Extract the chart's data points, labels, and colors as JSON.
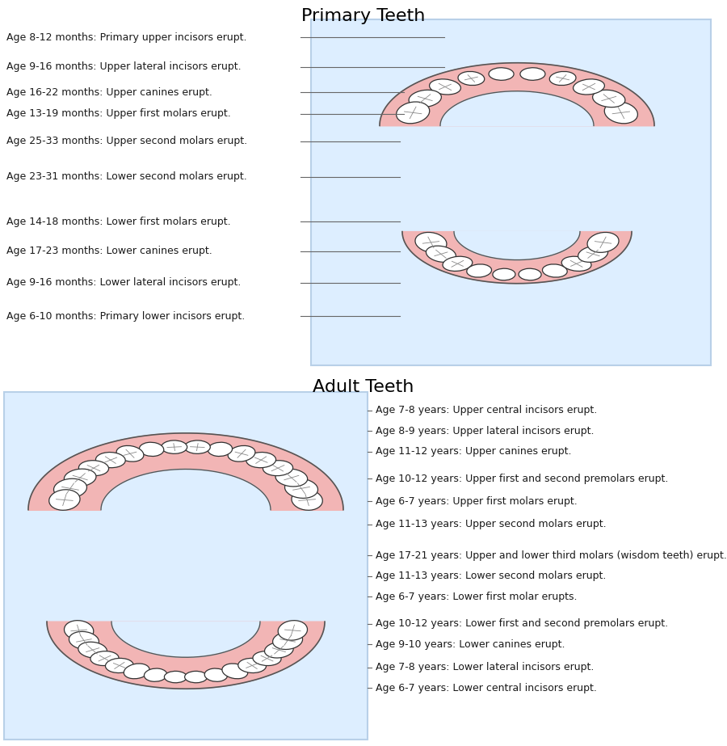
{
  "title1": "Primary Teeth",
  "title2": "Adult Teeth",
  "bg_color": "#ddeeff",
  "border_color": "#b8d0e8",
  "gum_color": "#f2b5b5",
  "tooth_color": "#ffffff",
  "tooth_edge": "#333333",
  "fissure_color": "#888888",
  "line_color": "#666666",
  "text_color": "#1a1a1a",
  "title_fontsize": 16,
  "label_fontsize": 9,
  "primary_labels": [
    "Age 8-12 months: Primary upper incisors erupt.",
    "Age 9-16 months: Upper lateral incisors erupt.",
    "Age 16-22 months: Upper canines erupt.",
    "Age 13-19 months: Upper first molars erupt.",
    "Age 25-33 months: Upper second molars erupt.",
    "Age 23-31 months: Lower second molars erupt.",
    "Age 14-18 months: Lower first molars erupt.",
    "Age 17-23 months: Lower canines erupt.",
    "Age 9-16 months: Lower lateral incisors erupt.",
    "Age 6-10 months: Primary lower incisors erupt."
  ],
  "adult_labels": [
    "Age 7-8 years: Upper central incisors erupt.",
    "Age 8-9 years: Upper lateral incisors erupt.",
    "Age 11-12 years: Upper canines erupt.",
    "Age 10-12 years: Upper first and second premolars erupt.",
    "Age 6-7 years: Upper first molars erupt.",
    "Age 11-13 years: Upper second molars erupt.",
    "Age 17-21 years: Upper and lower third molars (wisdom teeth) erupt.",
    "Age 11-13 years: Lower second molars erupt.",
    "Age 6-7 years: Lower first molar erupts.",
    "Age 10-12 years: Lower first and second premolars erupt.",
    "Age 9-10 years: Lower canines erupt.",
    "Age 7-8 years: Lower lateral incisors erupt.",
    "Age 6-7 years: Lower central incisors erupt."
  ]
}
